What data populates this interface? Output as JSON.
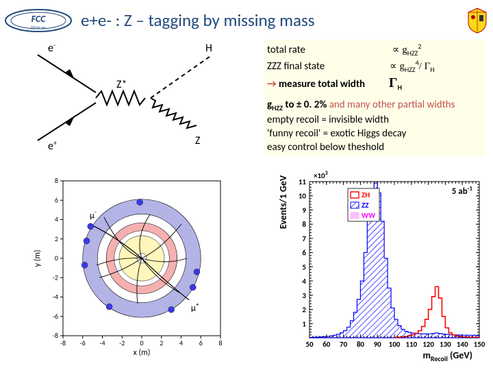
{
  "title": "e+e- : Z – tagging  by missing mass",
  "feynman": {
    "particles": {
      "eMinus": "e",
      "ePlus": "e",
      "zStar": "Z*",
      "H": "H",
      "Z": "Z",
      "minus": "-",
      "plus": "+"
    }
  },
  "infobox": {
    "line1_left": "total rate",
    "line1_right_prop": "∝ g",
    "line1_right_sub": "HZZ",
    "line1_right_sup": "2",
    "line2_left": "ZZZ final state",
    "line2_right_prop": "∝ g",
    "line2_right_sub": "HZZ",
    "line2_right_sup": "4",
    "line2_right_div": "/ Γ",
    "line2_right_div_sub": "H",
    "line3_arrow": "→",
    "line3_text": " measure total width",
    "line3_right": "Γ",
    "line3_right_sub": "H",
    "line4a": "g",
    "line4a_sub": "HZZ",
    "line4b": " to ± 0. 2% ",
    "line4c": "and many other partial widths",
    "line5": "empty recoil = invisible width",
    "line6": "'funny recoil' = exotic Higgs decay",
    "line7": "easy control below theshold"
  },
  "detector": {
    "xlabel": "x (m)",
    "ylabel": "y (m)",
    "muPlus": "μ",
    "muMinus": "μ",
    "plus": "+",
    "minus": "-",
    "ring_outer_color": "#b3b3e6",
    "ring_mid_color": "#f5b0b0",
    "ring_inner_color": "#fff6bc",
    "axis_range": [
      -8,
      -6,
      -4,
      -2,
      0,
      2,
      4,
      6,
      8
    ],
    "axis_range_y": [
      -8,
      -6,
      -4,
      -2,
      0,
      2,
      4,
      6,
      8
    ]
  },
  "histogram": {
    "xlabel": "m",
    "xlabel_sub": "Recoil",
    "xlabel_unit": " (GeV)",
    "ylabel": "Events/1 GeV",
    "ylabel_mult": "×10",
    "ylabel_mult_sup": "3",
    "lumi": "5 ab",
    "lumi_sup": "-1",
    "legend": {
      "ZH": "ZH",
      "ZZ": "ZZ",
      "WW": "WW"
    },
    "colors": {
      "ZH": "#ff0000",
      "ZZ": "#0000ff",
      "WW": "#ff00ff"
    },
    "xlim": [
      50,
      150
    ],
    "xticks": [
      50,
      60,
      70,
      80,
      90,
      100,
      110,
      120,
      130,
      140,
      150
    ],
    "ylim": [
      0,
      11000
    ],
    "yticks": [
      1,
      2,
      3,
      4,
      5,
      6,
      7,
      8,
      9,
      10,
      11
    ],
    "zz_bins": [
      [
        51,
        0.03
      ],
      [
        53,
        0.04
      ],
      [
        55,
        0.05
      ],
      [
        57,
        0.06
      ],
      [
        59,
        0.08
      ],
      [
        61,
        0.1
      ],
      [
        63,
        0.14
      ],
      [
        65,
        0.18
      ],
      [
        67,
        0.25
      ],
      [
        69,
        0.35
      ],
      [
        71,
        0.5
      ],
      [
        73,
        0.75
      ],
      [
        75,
        1.2
      ],
      [
        77,
        1.8
      ],
      [
        79,
        2.7
      ],
      [
        81,
        4.0
      ],
      [
        83,
        6.0
      ],
      [
        85,
        8.3
      ],
      [
        87,
        10.0
      ],
      [
        89,
        10.9
      ],
      [
        91,
        10.2
      ],
      [
        93,
        8.2
      ],
      [
        95,
        5.6
      ],
      [
        97,
        3.5
      ],
      [
        99,
        2.1
      ],
      [
        101,
        1.3
      ],
      [
        103,
        0.85
      ],
      [
        105,
        0.6
      ],
      [
        107,
        0.45
      ],
      [
        109,
        0.38
      ],
      [
        111,
        0.33
      ],
      [
        113,
        0.3
      ],
      [
        115,
        0.28
      ],
      [
        117,
        0.27
      ],
      [
        119,
        0.27
      ],
      [
        121,
        0.28
      ],
      [
        123,
        0.3
      ],
      [
        125,
        0.34
      ],
      [
        127,
        0.3
      ],
      [
        129,
        0.26
      ],
      [
        131,
        0.24
      ],
      [
        133,
        0.22
      ],
      [
        135,
        0.21
      ],
      [
        137,
        0.2
      ],
      [
        139,
        0.19
      ],
      [
        141,
        0.185
      ],
      [
        143,
        0.18
      ],
      [
        145,
        0.178
      ],
      [
        147,
        0.175
      ],
      [
        149,
        0.172
      ]
    ],
    "zh_bins": [
      [
        101,
        0.02
      ],
      [
        103,
        0.04
      ],
      [
        105,
        0.06
      ],
      [
        107,
        0.1
      ],
      [
        109,
        0.15
      ],
      [
        111,
        0.22
      ],
      [
        113,
        0.32
      ],
      [
        115,
        0.5
      ],
      [
        117,
        0.8
      ],
      [
        119,
        1.3
      ],
      [
        121,
        2.0
      ],
      [
        123,
        2.9
      ],
      [
        125,
        3.6
      ],
      [
        127,
        2.8
      ],
      [
        129,
        1.5
      ],
      [
        131,
        0.7
      ],
      [
        133,
        0.35
      ],
      [
        135,
        0.2
      ],
      [
        137,
        0.12
      ],
      [
        139,
        0.08
      ],
      [
        141,
        0.06
      ],
      [
        143,
        0.05
      ],
      [
        145,
        0.04
      ],
      [
        147,
        0.035
      ],
      [
        149,
        0.03
      ]
    ],
    "ww_level": 0.04
  },
  "colors": {
    "title": "#1f497d",
    "arrow": "#c0504d",
    "bold_red": "#c0504d"
  }
}
